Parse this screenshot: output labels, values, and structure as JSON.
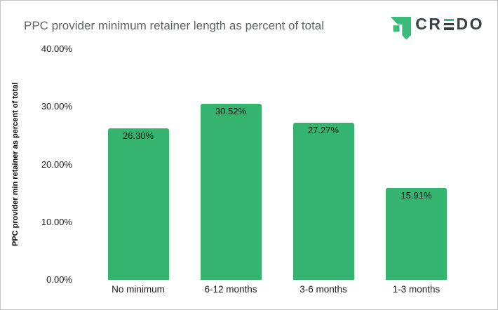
{
  "window": {
    "background": "#ffffff",
    "border_color": "#c3c3c3"
  },
  "header": {
    "title": "PPC provider minimum retainer length as percent of total",
    "title_color": "#5f6368"
  },
  "logo": {
    "brand": "CREDO",
    "letters_before_e": "CR",
    "letters_after_e": "DO",
    "icon_name": "credo-flag-icon",
    "green": "#3cba7a",
    "text_color": "#3b4045"
  },
  "chart_data": {
    "type": "bar",
    "title": "PPC provider minimum retainer length as percent of total",
    "categories": [
      "No minimum",
      "6-12 months",
      "3-6 months",
      "1-3 months"
    ],
    "values": [
      26.3,
      30.52,
      27.27,
      15.91
    ],
    "value_labels": [
      "26.30%",
      "30.52%",
      "27.27%",
      "15.91%"
    ],
    "xlabel": "",
    "ylabel": "PPC provider min retainer as percent of total",
    "ylim": [
      0,
      40
    ],
    "yticks": [
      {
        "value": 40,
        "label": "40.00%"
      },
      {
        "value": 30,
        "label": "30.00%"
      },
      {
        "value": 20,
        "label": "20.00%"
      },
      {
        "value": 10,
        "label": "10.00%"
      },
      {
        "value": 0,
        "label": "0.00%"
      }
    ],
    "grid": false,
    "legend": false,
    "bar_color": "#34b46e",
    "data_label_color": "#111111"
  }
}
